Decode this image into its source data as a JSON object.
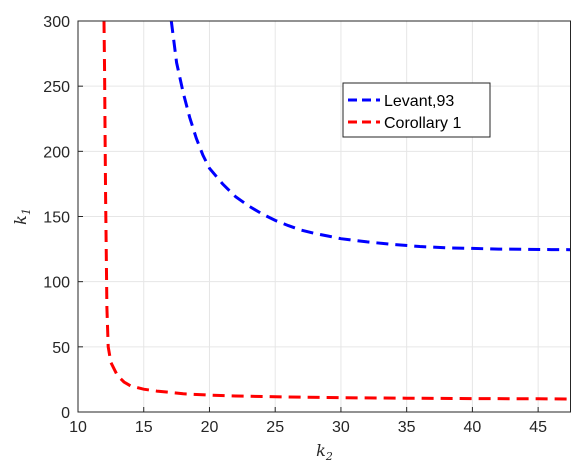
{
  "chart_data": {
    "type": "line",
    "title": "",
    "xlabel": "k",
    "xlabel_sub": "2",
    "ylabel": "k",
    "ylabel_sub": "1",
    "xlim": [
      10,
      47.5
    ],
    "ylim": [
      0,
      300
    ],
    "xticks": [
      10,
      15,
      20,
      25,
      30,
      35,
      40,
      45
    ],
    "yticks": [
      0,
      50,
      100,
      150,
      200,
      250,
      300
    ],
    "grid": true,
    "legend_position": "upper-right (inside)",
    "series": [
      {
        "name": "Levant,93",
        "color": "#0000ff",
        "linestyle": "dashed",
        "x": [
          17.1,
          17.5,
          18,
          18.5,
          19,
          19.5,
          20,
          21,
          22,
          23,
          24,
          25,
          26,
          27,
          28,
          29,
          30,
          32,
          34,
          36,
          38,
          40,
          42,
          44,
          46,
          47.5
        ],
        "y": [
          300,
          268,
          245,
          226,
          210,
          197,
          187,
          175,
          165,
          158,
          152,
          147,
          143,
          139.5,
          137,
          135,
          133,
          130.5,
          128.5,
          127,
          126,
          125.5,
          125,
          124.8,
          124.6,
          124.5
        ]
      },
      {
        "name": "Corollary 1",
        "color": "#ff0000",
        "linestyle": "dashed",
        "x": [
          11.98,
          12.02,
          12.06,
          12.1,
          12.15,
          12.2,
          12.3,
          12.5,
          13,
          13.5,
          14,
          15,
          16,
          17,
          18,
          20,
          22,
          25,
          30,
          35,
          40,
          45,
          47.5
        ],
        "y": [
          300,
          260,
          210,
          165,
          120,
          80,
          50,
          38,
          28,
          23,
          20,
          17.5,
          16,
          15,
          14,
          13,
          12.3,
          11.7,
          11,
          10.6,
          10.3,
          10.1,
          10
        ]
      }
    ]
  }
}
